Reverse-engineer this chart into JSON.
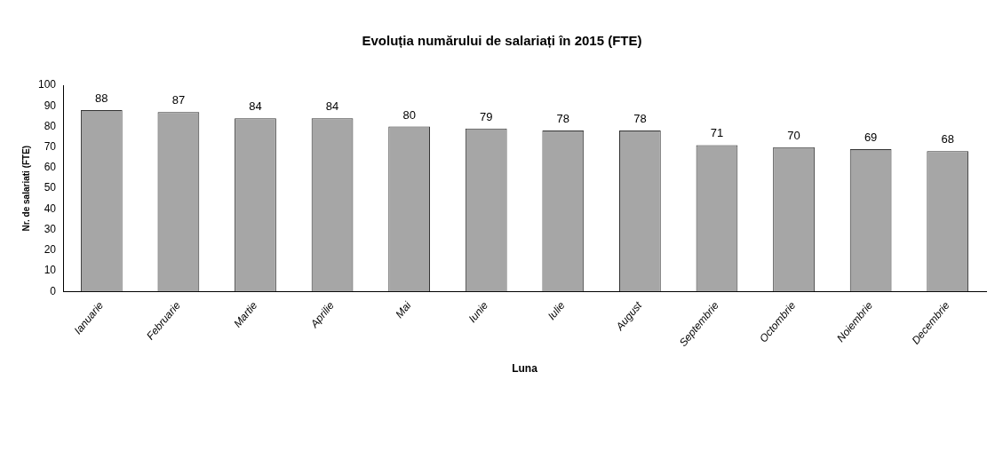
{
  "chart_data": {
    "type": "bar",
    "title": "Evoluția numărului de salariați în 2015 (FTE)",
    "xlabel": "Luna",
    "ylabel": "Nr. de salariati (FTE)",
    "categories": [
      "Ianuarie",
      "Februarie",
      "Martie",
      "Aprilie",
      "Mai",
      "Iunie",
      "Iulie",
      "August",
      "Septembrie",
      "Octombrie",
      "Noiembrie",
      "Decembrie"
    ],
    "values": [
      88,
      87,
      84,
      84,
      80,
      79,
      78,
      78,
      71,
      70,
      69,
      68
    ],
    "color": "#a6a6a6",
    "ylim": [
      0,
      100
    ],
    "yticks": [
      0,
      10,
      20,
      30,
      40,
      50,
      60,
      70,
      80,
      90,
      100
    ],
    "data_labels": true
  }
}
